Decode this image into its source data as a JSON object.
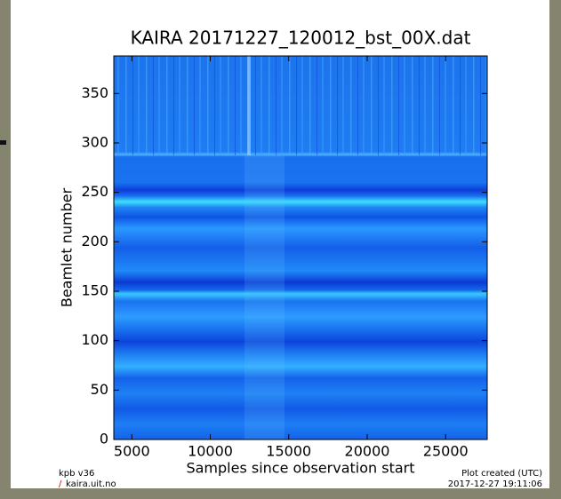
{
  "chart_data": {
    "type": "heatmap",
    "title": "KAIRA  20171227_120012_bst_00X.dat",
    "xlabel": "Samples since observation start",
    "ylabel": "Beamlet number",
    "xlim": [
      3850,
      27650
    ],
    "ylim": [
      0,
      388
    ],
    "xticks": [
      5000,
      10000,
      15000,
      20000,
      25000
    ],
    "yticks": [
      0,
      50,
      100,
      150,
      200,
      250,
      300,
      350
    ],
    "credits": [
      "kpb v36",
      "/",
      "kaira.uit.no"
    ],
    "created": [
      "Plot created (UTC)",
      "2017-12-27 19:11:06"
    ]
  }
}
